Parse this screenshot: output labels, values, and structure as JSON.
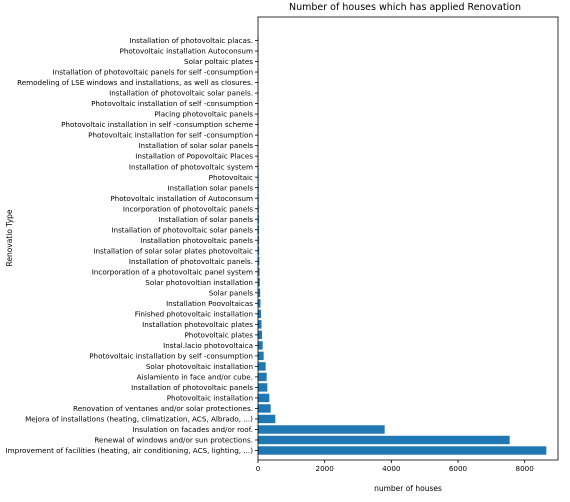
{
  "chart_data": {
    "type": "bar",
    "orientation": "horizontal",
    "title": "Number of houses which has applied  Renovation",
    "xlabel": "number of houses",
    "ylabel": "Renovatio Type",
    "xlim": [
      0,
      9000
    ],
    "xticks": [
      "0",
      "2000",
      "4000",
      "6000",
      "8000"
    ],
    "xtick_values": [
      0,
      2000,
      4000,
      6000,
      8000
    ],
    "grid": false,
    "bar_color": "#1f77b4",
    "categories": [
      "Improvement of facilities (heating, air conditioning, ACS, lighting, ...)",
      "Renewal of windows and/or sun protections.",
      "Insulation on facades and/or roof.",
      "Mejora of installations (heating, climatization, ACS, Albrado, ...)",
      "Renovation of ventanes and/or solar protectiones.",
      "Photovoltaic installation",
      "Installation of photovoltaic panels",
      "Aislamiento in face and/or cube.",
      "Solar photovoltaic installation",
      "Photovoltaic installation by self -consumption",
      "Instal.lacio photovoltaica",
      "Photovoltaic plates",
      "Installation photovoltaic plates",
      "Finished photovoltaic installation",
      "Installation Poovoltaicas",
      "Solar panels",
      "Solar photovoltian installation",
      "Incorporation of a photovoltaic panel system",
      "Installation of photovoltaic panels.",
      "Installation of solar solar plates photovoltaic",
      "Installation photovoltaic panels",
      "Installation of photovoltaic solar panels",
      "Installation of solar panels",
      "Incorporation of photovoltaic panels",
      "Photovoltaic installation of Autoconsum",
      "Installation solar panels",
      "Photovoltaic",
      "Installation of photovoltaic system",
      "Installation of Popovoltaic Places",
      "Installation of solar solar panels",
      "Photovoltaic installation for self -consumption",
      "Photovoltaic installation in self -consumption scheme",
      "Placing photovoltaic panels",
      "Photovoltaic installation of self -consumption",
      "Installation of photovoltaic solar panels.",
      "Remodeling of LSE windows and installations, as well as closures.",
      "Installation of photovoltaic panels for self -consumption",
      "Solar poltaic plates",
      "Photovoltaic installation Autoconsum",
      "Installation of photovoltaic placas."
    ],
    "values": [
      8650,
      7550,
      3800,
      520,
      380,
      340,
      280,
      260,
      230,
      170,
      140,
      120,
      105,
      90,
      75,
      65,
      55,
      45,
      40,
      35,
      32,
      30,
      28,
      26,
      24,
      22,
      20,
      18,
      16,
      15,
      14,
      13,
      12,
      11,
      10,
      9,
      8,
      7,
      6,
      5
    ]
  }
}
